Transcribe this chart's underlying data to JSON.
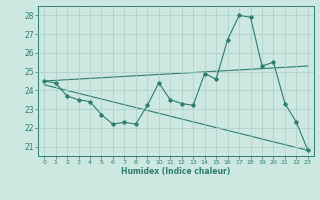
{
  "x": [
    0,
    1,
    2,
    3,
    4,
    5,
    6,
    7,
    8,
    9,
    10,
    11,
    12,
    13,
    14,
    15,
    16,
    17,
    18,
    19,
    20,
    21,
    22,
    23
  ],
  "y_main": [
    24.5,
    24.4,
    23.7,
    23.5,
    23.4,
    22.7,
    22.2,
    22.3,
    22.2,
    23.2,
    24.4,
    23.5,
    23.3,
    23.2,
    24.9,
    24.6,
    26.7,
    28.0,
    27.9,
    25.3,
    25.5,
    23.3,
    22.3,
    20.8
  ],
  "trend1_x": [
    0,
    23
  ],
  "trend1_y": [
    24.5,
    25.3
  ],
  "trend2_x": [
    0,
    23
  ],
  "trend2_y": [
    24.3,
    20.8
  ],
  "line_color": "#2e7d6e",
  "bg_color": "#cce8e0",
  "grid_color": "#aacfc8",
  "xlabel": "Humidex (Indice chaleur)",
  "ylim": [
    20.5,
    28.5
  ],
  "xlim": [
    -0.5,
    23.5
  ],
  "yticks": [
    21,
    22,
    23,
    24,
    25,
    26,
    27,
    28
  ],
  "xticks": [
    0,
    1,
    2,
    3,
    4,
    5,
    6,
    7,
    8,
    9,
    10,
    11,
    12,
    13,
    14,
    15,
    16,
    17,
    18,
    19,
    20,
    21,
    22,
    23
  ]
}
